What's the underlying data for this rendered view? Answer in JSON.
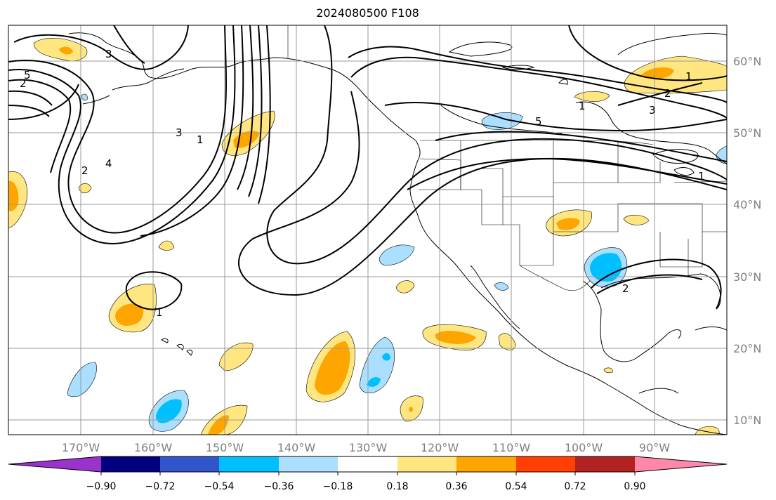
{
  "title": "2024080500 F108",
  "map": {
    "lon_labels": [
      "170°W",
      "160°W",
      "150°W",
      "140°W",
      "130°W",
      "120°W",
      "110°W",
      "100°W",
      "90°W"
    ],
    "lat_labels": [
      "60°N",
      "50°N",
      "40°N",
      "30°N",
      "20°N",
      "10°N"
    ],
    "contour_labels": [
      "1",
      "2",
      "3",
      "5",
      "2",
      "3",
      "1",
      "4",
      "2",
      "1",
      "5",
      "2",
      "3",
      "1",
      "1"
    ],
    "grid": true
  },
  "colorbar": {
    "tick_labels": [
      "−0.90",
      "−0.72",
      "−0.54",
      "−0.36",
      "−0.18",
      "0.18",
      "0.36",
      "0.54",
      "0.72",
      "0.90"
    ],
    "colors": [
      "#9933cc",
      "#000080",
      "#3355cc",
      "#00bfff",
      "#aadfff",
      "#ffffff",
      "#ffe680",
      "#ffa500",
      "#ff4000",
      "#b22222",
      "#ff88aa"
    ],
    "extend": "both"
  }
}
